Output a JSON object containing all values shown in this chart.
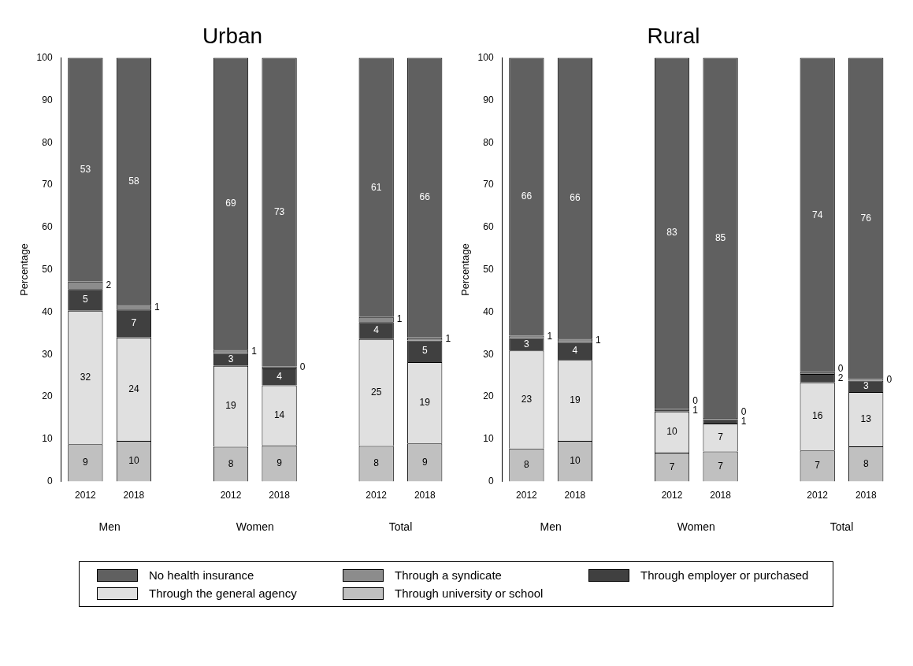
{
  "chart_data": [
    {
      "type": "bar",
      "title": "Urban",
      "ylabel": "Percentage",
      "stacked": true,
      "legend": "bottom",
      "grid": false,
      "categories": [
        "2012",
        "2018",
        null,
        "2012",
        "2018",
        null,
        "2012",
        "2018"
      ],
      "annotations": [
        "Men",
        "Women",
        "Total"
      ],
      "ylim": [
        0,
        100
      ],
      "yticks": [
        0,
        10,
        20,
        30,
        40,
        50,
        60,
        70,
        80,
        90,
        100
      ],
      "series": [
        {
          "name": "Through university or school",
          "color": "#c0c0c0",
          "values": [
            8.8,
            9.6,
            null,
            8.2,
            8.5,
            null,
            8.4,
            9.0
          ],
          "value_labels": [
            "9",
            "10",
            null,
            "8",
            "9",
            null,
            "8",
            "9"
          ]
        },
        {
          "name": "Through the general agency",
          "color": "#e0e0e0",
          "values": [
            31.5,
            24.4,
            null,
            19.1,
            14.2,
            null,
            25.2,
            19.2
          ],
          "value_labels": [
            "32",
            "24",
            null,
            "19",
            "14",
            null,
            "25",
            "19"
          ]
        },
        {
          "name": "Through employer or purchased",
          "color": "#404040",
          "values": [
            5.1,
            6.6,
            null,
            3.0,
            4.0,
            null,
            4.0,
            5.1
          ],
          "value_labels": [
            "5",
            "7",
            null,
            "3",
            "4",
            null,
            "4",
            "5"
          ]
        },
        {
          "name": "Through a syndicate",
          "color": "#8c8c8c",
          "values": [
            1.8,
            1.1,
            null,
            0.8,
            0.4,
            null,
            1.2,
            0.7
          ],
          "value_labels": [
            "2",
            "1",
            null,
            "1",
            "0",
            null,
            "1",
            "1"
          ]
        },
        {
          "name": "No health insurance",
          "color": "#606060",
          "values": [
            52.8,
            58.3,
            null,
            68.9,
            72.9,
            null,
            61.2,
            66.0
          ],
          "value_labels": [
            "53",
            "58",
            null,
            "69",
            "73",
            null,
            "61",
            "66"
          ]
        }
      ]
    },
    {
      "type": "bar",
      "title": "Rural",
      "ylabel": "Percentage",
      "stacked": true,
      "grid": false,
      "categories": [
        "2012",
        "2018",
        null,
        "2012",
        "2018",
        null,
        "2012",
        "2018"
      ],
      "annotations": [
        "Men",
        "Women",
        "Total"
      ],
      "ylim": [
        0,
        100
      ],
      "yticks": [
        0,
        10,
        20,
        30,
        40,
        50,
        60,
        70,
        80,
        90,
        100
      ],
      "series": [
        {
          "color": "#c0c0c0",
          "values": [
            7.8,
            9.6,
            null,
            6.8,
            7.1,
            null,
            7.3,
            8.3
          ],
          "value_labels": [
            "8",
            "10",
            null,
            "7",
            "7",
            null,
            "7",
            "8"
          ]
        },
        {
          "color": "#e0e0e0",
          "values": [
            23.1,
            19.1,
            null,
            9.7,
            6.6,
            null,
            16.1,
            12.8
          ],
          "value_labels": [
            "23",
            "19",
            null,
            "10",
            "7",
            null,
            "16",
            "13"
          ]
        },
        {
          "color": "#404040",
          "values": [
            2.9,
            4.2,
            null,
            0.6,
            1.0,
            null,
            2.0,
            2.7
          ],
          "value_labels": [
            "3",
            "4",
            null,
            "1",
            "1",
            null,
            "2",
            "3"
          ]
        },
        {
          "color": "#8c8c8c",
          "values": [
            0.6,
            0.8,
            null,
            0.3,
            0.3,
            null,
            0.4,
            0.4
          ],
          "value_labels": [
            "1",
            "1",
            null,
            "0",
            "0",
            null,
            "0",
            "0"
          ]
        },
        {
          "color": "#606060",
          "values": [
            65.6,
            66.3,
            null,
            82.6,
            85.0,
            null,
            74.2,
            75.8
          ],
          "value_labels": [
            "66",
            "66",
            null,
            "83",
            "85",
            null,
            "74",
            "76"
          ]
        }
      ]
    }
  ]
}
